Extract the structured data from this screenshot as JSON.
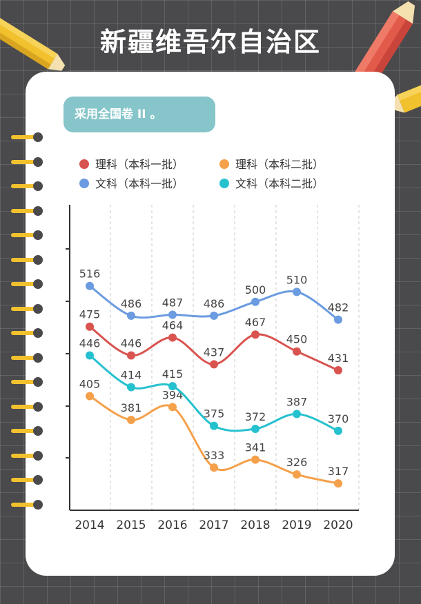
{
  "title": "新疆维吾尔自治区",
  "subtitle": "采用全国卷 II 。",
  "colors": {
    "background": "#4a4a4c",
    "card": "#ffffff",
    "subtitle_box": "#86c5c9",
    "ring": "#f2c12e"
  },
  "icons": [
    "pencil-icon",
    "binder-ring-icon"
  ],
  "chart_data": {
    "type": "line",
    "categories": [
      "2014",
      "2015",
      "2016",
      "2017",
      "2018",
      "2019",
      "2020"
    ],
    "series": [
      {
        "name": "理科（本科一批）",
        "color": "#d9534f",
        "values": [
          475,
          446,
          464,
          437,
          467,
          450,
          431
        ]
      },
      {
        "name": "理科（本科二批）",
        "color": "#f5a04a",
        "values": [
          405,
          381,
          394,
          333,
          341,
          326,
          317
        ]
      },
      {
        "name": "文科（本科一批）",
        "color": "#6b9be0",
        "values": [
          516,
          486,
          487,
          486,
          500,
          510,
          482
        ]
      },
      {
        "name": "文科（本科二批）",
        "color": "#26c1cf",
        "values": [
          446,
          414,
          415,
          375,
          372,
          387,
          370
        ]
      }
    ],
    "legend_position": "top",
    "grid": "vertical-dashed",
    "ylim": [
      290,
      570
    ]
  }
}
